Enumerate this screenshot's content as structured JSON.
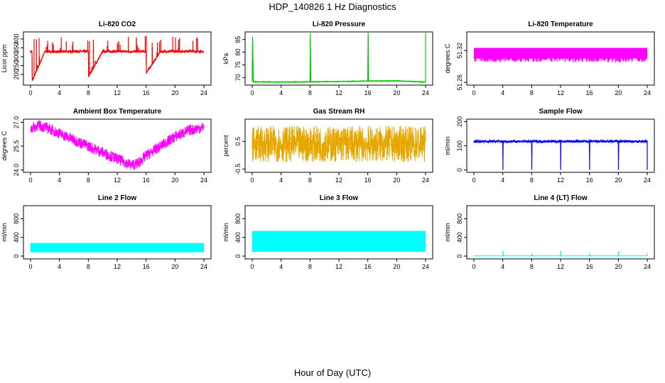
{
  "figure": {
    "title": "HDP_140826  1 Hz Diagnostics",
    "xlabel": "Hour of Day (UTC)"
  },
  "chart_data": [
    {
      "type": "line",
      "title": "Li-820 CO2",
      "ylabel": "Licor ppm",
      "color": "#ff0000",
      "xlim": [
        0,
        24
      ],
      "xticks": [
        "0",
        "4",
        "8",
        "12",
        "16",
        "20",
        "24"
      ],
      "ylim": [
        140,
        440
      ],
      "yticks": [
        200,
        250,
        300,
        350,
        400
      ],
      "series": [
        {
          "x": [
            0,
            0.2,
            0.25,
            2,
            4,
            6,
            8,
            8.05,
            10,
            12,
            14,
            16,
            16.05,
            18,
            20,
            22,
            24
          ],
          "y": [
            330,
            330,
            165,
            330,
            328,
            330,
            330,
            190,
            331,
            330,
            329,
            330,
            210,
            330,
            330,
            332,
            328
          ]
        }
      ],
      "noise": {
        "amp": 8,
        "spikes": 60,
        "spike_max": 420
      }
    },
    {
      "type": "line",
      "title": "Li-820 Pressure",
      "ylabel": "kPa",
      "color": "#00cc00",
      "xlim": [
        0,
        24
      ],
      "xticks": [
        "0",
        "4",
        "8",
        "12",
        "16",
        "20",
        "24"
      ],
      "ylim": [
        67.0,
        88.0
      ],
      "yticks": [
        70,
        75,
        80,
        85
      ],
      "series": [
        {
          "x": [
            0,
            0.05,
            0.1,
            0.15,
            4,
            8,
            8.05,
            8.1,
            12,
            16,
            16.05,
            16.1,
            20,
            24,
            24.05
          ],
          "y": [
            68.3,
            86,
            78,
            68.3,
            68.2,
            68.3,
            87.5,
            68.3,
            68.4,
            68.6,
            87.6,
            68.6,
            68.7,
            68.2,
            87.6
          ]
        }
      ],
      "noise": {
        "amp": 0.15,
        "spikes": 0,
        "spike_max": 0
      }
    },
    {
      "type": "line",
      "title": "Li-820 Temperature",
      "ylabel": "degrees C",
      "color": "#ff00ff",
      "xlim": [
        0,
        24
      ],
      "xticks": [
        "0",
        "4",
        "8",
        "12",
        "16",
        "20",
        "24"
      ],
      "ylim": [
        51.255,
        51.355
      ],
      "yticks": [
        "51.26",
        "51.32"
      ],
      "band": {
        "low": 51.305,
        "high": 51.325,
        "x_start": 0,
        "x_end": 24
      },
      "series": [
        {
          "x": [
            0,
            24
          ],
          "y": [
            51.31,
            51.31
          ]
        }
      ],
      "noise": {
        "amp": 0.012,
        "spikes": 0,
        "spike_max": 0
      }
    },
    {
      "type": "line",
      "title": "Ambient Box Temperature",
      "ylabel": "degrees C",
      "color": "#ff00ff",
      "xlim": [
        0,
        24
      ],
      "xticks": [
        "0",
        "4",
        "8",
        "12",
        "16",
        "20",
        "24"
      ],
      "ylim": [
        23.85,
        27.2
      ],
      "yticks": [
        "24.0",
        "25.5",
        "27.0"
      ],
      "series": [
        {
          "x": [
            0,
            1,
            2,
            4,
            6,
            8,
            10,
            12,
            13,
            14,
            15,
            16,
            18,
            20,
            22,
            24
          ],
          "y": [
            26.6,
            26.8,
            26.7,
            26.3,
            25.9,
            25.5,
            25.1,
            24.7,
            24.5,
            24.3,
            24.45,
            24.9,
            25.5,
            26.1,
            26.5,
            26.7
          ]
        }
      ],
      "noise": {
        "amp": 0.35,
        "spikes": 0,
        "spike_max": 0
      }
    },
    {
      "type": "line",
      "title": "Gas Stream RH",
      "ylabel": "percent",
      "color": "#e6a800",
      "xlim": [
        0,
        24
      ],
      "xticks": [
        "0",
        "4",
        "8",
        "12",
        "16",
        "20",
        "24"
      ],
      "ylim": [
        -0.62,
        1.3
      ],
      "yticks": [
        "-0.5",
        "0.5"
      ],
      "series": [
        {
          "x": [
            0,
            24
          ],
          "y": [
            0.4,
            0.4
          ]
        }
      ],
      "noise": {
        "amp": 0.65,
        "spikes": 0,
        "spike_max": 0
      }
    },
    {
      "type": "line",
      "title": "Sample Flow",
      "ylabel": "ml/min",
      "color": "#0000ff",
      "xlim": [
        0,
        24
      ],
      "xticks": [
        "0",
        "4",
        "8",
        "12",
        "16",
        "20",
        "24"
      ],
      "ylim": [
        -10,
        210
      ],
      "yticks": [
        0,
        100,
        200
      ],
      "series": [
        {
          "x": [
            0,
            4,
            4.02,
            4.04,
            8,
            8.02,
            8.04,
            12,
            12.02,
            12.04,
            16,
            16.02,
            16.04,
            20,
            20.02,
            20.04,
            24,
            24.02
          ],
          "y": [
            118,
            118,
            0,
            118,
            118,
            0,
            118,
            118,
            0,
            118,
            118,
            0,
            118,
            118,
            0,
            118,
            118,
            0
          ]
        }
      ],
      "noise": {
        "amp": 6,
        "spikes": 0,
        "spike_max": 0
      }
    },
    {
      "type": "line",
      "title": "Line 2 Flow",
      "ylabel": "ml/min",
      "color": "#00ffff",
      "xlim": [
        0,
        24
      ],
      "xticks": [
        "0",
        "4",
        "8",
        "12",
        "16",
        "20",
        "24"
      ],
      "ylim": [
        -60,
        1080
      ],
      "yticks": [
        0,
        400,
        800
      ],
      "band": {
        "low": 80,
        "high": 280,
        "x_start": 0,
        "x_end": 24
      },
      "series": [
        {
          "x": [
            0,
            24
          ],
          "y": [
            180,
            180
          ]
        }
      ],
      "noise": {
        "amp": 0,
        "spikes": 0,
        "spike_max": 0
      }
    },
    {
      "type": "line",
      "title": "Line 3 Flow",
      "ylabel": "ml/min",
      "color": "#00ffff",
      "xlim": [
        0,
        24
      ],
      "xticks": [
        "0",
        "4",
        "8",
        "12",
        "16",
        "20",
        "24"
      ],
      "ylim": [
        -60,
        1080
      ],
      "yticks": [
        0,
        400,
        800
      ],
      "band": {
        "low": 90,
        "high": 540,
        "x_start": 0,
        "x_end": 24
      },
      "series": [
        {
          "x": [
            0,
            24
          ],
          "y": [
            300,
            300
          ]
        }
      ],
      "noise": {
        "amp": 0,
        "spikes": 0,
        "spike_max": 0
      }
    },
    {
      "type": "line",
      "title": "Line 4 (LT) Flow",
      "ylabel": "ml/min",
      "color": "#00ffff",
      "xlim": [
        0,
        24
      ],
      "xticks": [
        "0",
        "4",
        "8",
        "12",
        "16",
        "20",
        "24"
      ],
      "ylim": [
        -60,
        1080
      ],
      "yticks": [
        0,
        400,
        800
      ],
      "series": [
        {
          "x": [
            0,
            4,
            4.03,
            4.06,
            8,
            8.03,
            8.06,
            12,
            12.03,
            12.06,
            16,
            16.03,
            16.06,
            20,
            20.03,
            20.06,
            24,
            24.03
          ],
          "y": [
            5,
            5,
            110,
            5,
            5,
            60,
            5,
            5,
            110,
            5,
            5,
            60,
            5,
            5,
            110,
            5,
            5,
            60
          ]
        }
      ],
      "noise": {
        "amp": 0,
        "spikes": 0,
        "spike_max": 0
      }
    }
  ]
}
